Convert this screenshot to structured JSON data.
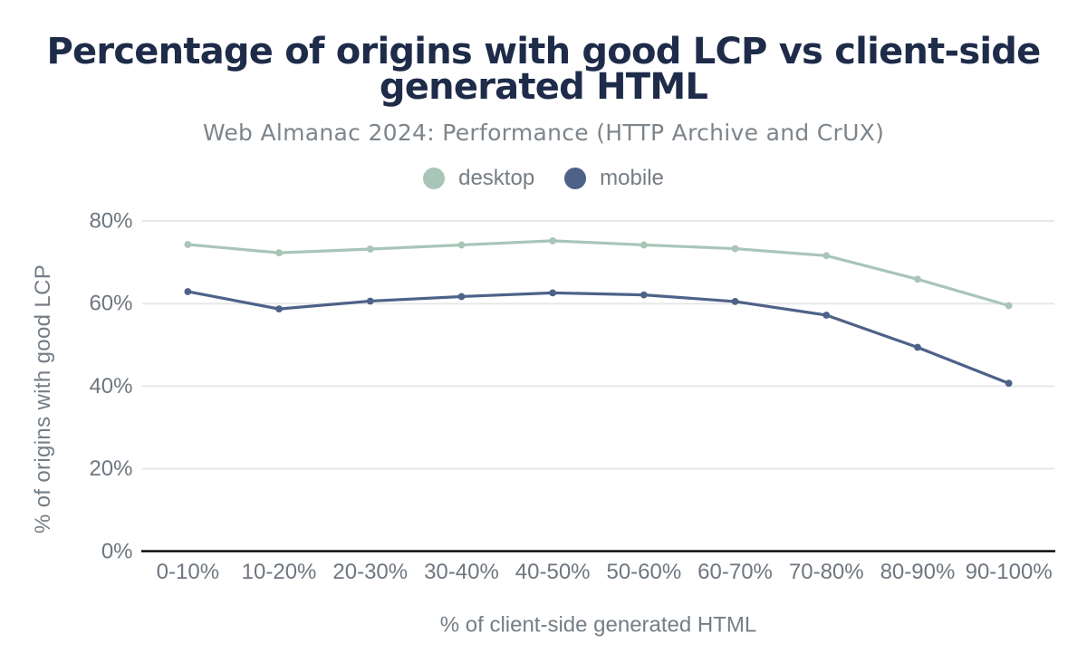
{
  "chart_data": {
    "type": "line",
    "title": "Percentage of origins with good LCP vs client-side generated HTML",
    "subtitle": "Web Almanac 2024: Performance (HTTP Archive and CrUX)",
    "xlabel": "% of client-side generated HTML",
    "ylabel": "% of origins with good LCP",
    "categories": [
      "0-10%",
      "10-20%",
      "20-30%",
      "30-40%",
      "40-50%",
      "50-60%",
      "60-70%",
      "70-80%",
      "80-90%",
      "90-100%"
    ],
    "series": [
      {
        "name": "desktop",
        "color": "#a9c5b8",
        "values": [
          74.3,
          72.3,
          73.2,
          74.2,
          75.2,
          74.2,
          73.3,
          71.6,
          65.9,
          59.5
        ]
      },
      {
        "name": "mobile",
        "color": "#4e6288",
        "values": [
          62.9,
          58.7,
          60.6,
          61.7,
          62.6,
          62.1,
          60.5,
          57.2,
          49.4,
          40.7
        ]
      }
    ],
    "ylim": [
      0,
      80
    ],
    "yticks": [
      0,
      20,
      40,
      60,
      80
    ],
    "ytick_suffix": "%",
    "grid": true,
    "legend_position": "top"
  },
  "style": {
    "background": "#ffffff",
    "title_color": "#1e2b49",
    "subtitle_color": "#7d858c",
    "tick_color": "#6e767f",
    "axis_title_color": "#757d85",
    "grid_color": "#e8e8e8",
    "axis_color": "#000000"
  }
}
